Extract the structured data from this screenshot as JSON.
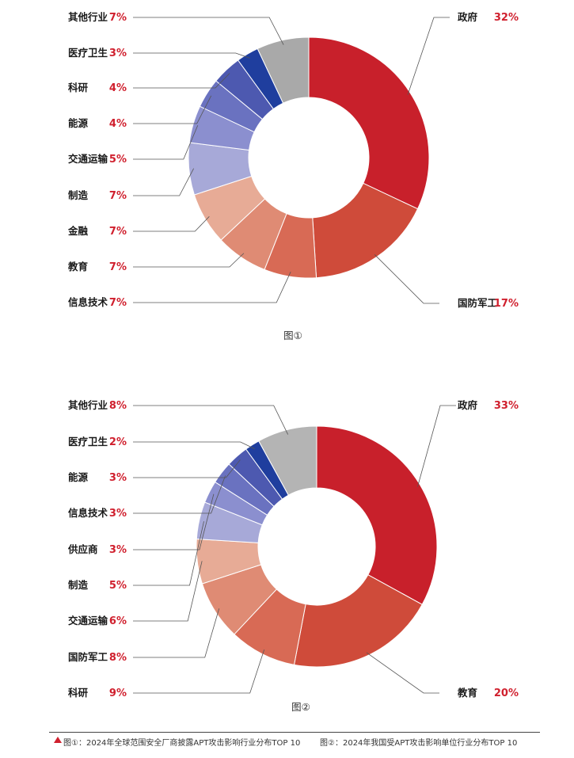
{
  "chart_data": [
    {
      "type": "pie",
      "subtype": "donut",
      "caption": "图①",
      "title": "2024年全球范围安全厂商披露APT攻击影响行业分布TOP 10",
      "categories": [
        "政府",
        "国防军工",
        "信息技术",
        "教育",
        "金融",
        "制造",
        "交通运输",
        "能源",
        "科研",
        "医疗卫生",
        "其他行业"
      ],
      "values": [
        32,
        17,
        7,
        7,
        7,
        7,
        5,
        4,
        4,
        3,
        7
      ],
      "value_labels": [
        "32%",
        "17%",
        "7%",
        "7%",
        "7%",
        "7%",
        "5%",
        "4%",
        "4%",
        "3%",
        "7%"
      ],
      "colors": [
        "#c8202b",
        "#cf4b3a",
        "#d86a55",
        "#df8b74",
        "#e7ab96",
        "#a7a9d8",
        "#8b8fcf",
        "#6a72c0",
        "#4d59b0",
        "#1f3e9e",
        "#a9a9a9"
      ]
    },
    {
      "type": "pie",
      "subtype": "donut",
      "caption": "图②",
      "title": "2024年我国受APT攻击影响单位行业分布TOP 10",
      "categories": [
        "政府",
        "教育",
        "科研",
        "国防军工",
        "交通运输",
        "制造",
        "供应商",
        "信息技术",
        "能源",
        "医疗卫生",
        "其他行业"
      ],
      "values": [
        33,
        20,
        9,
        8,
        6,
        5,
        3,
        3,
        3,
        2,
        8
      ],
      "value_labels": [
        "33%",
        "20%",
        "9%",
        "8%",
        "6%",
        "5%",
        "3%",
        "3%",
        "3%",
        "2%",
        "8%"
      ],
      "colors": [
        "#c8202b",
        "#cf4b3a",
        "#d86a55",
        "#df8b74",
        "#e7ab96",
        "#a7a9d8",
        "#8b8fcf",
        "#6a72c0",
        "#4d59b0",
        "#1f3e9e",
        "#b4b4b4"
      ]
    }
  ],
  "footer": {
    "left_text": "图①：2024年全球范围安全厂商披露APT攻击影响行业分布TOP 10",
    "right_text": "图②：2024年我国受APT攻击影响单位行业分布TOP 10"
  }
}
